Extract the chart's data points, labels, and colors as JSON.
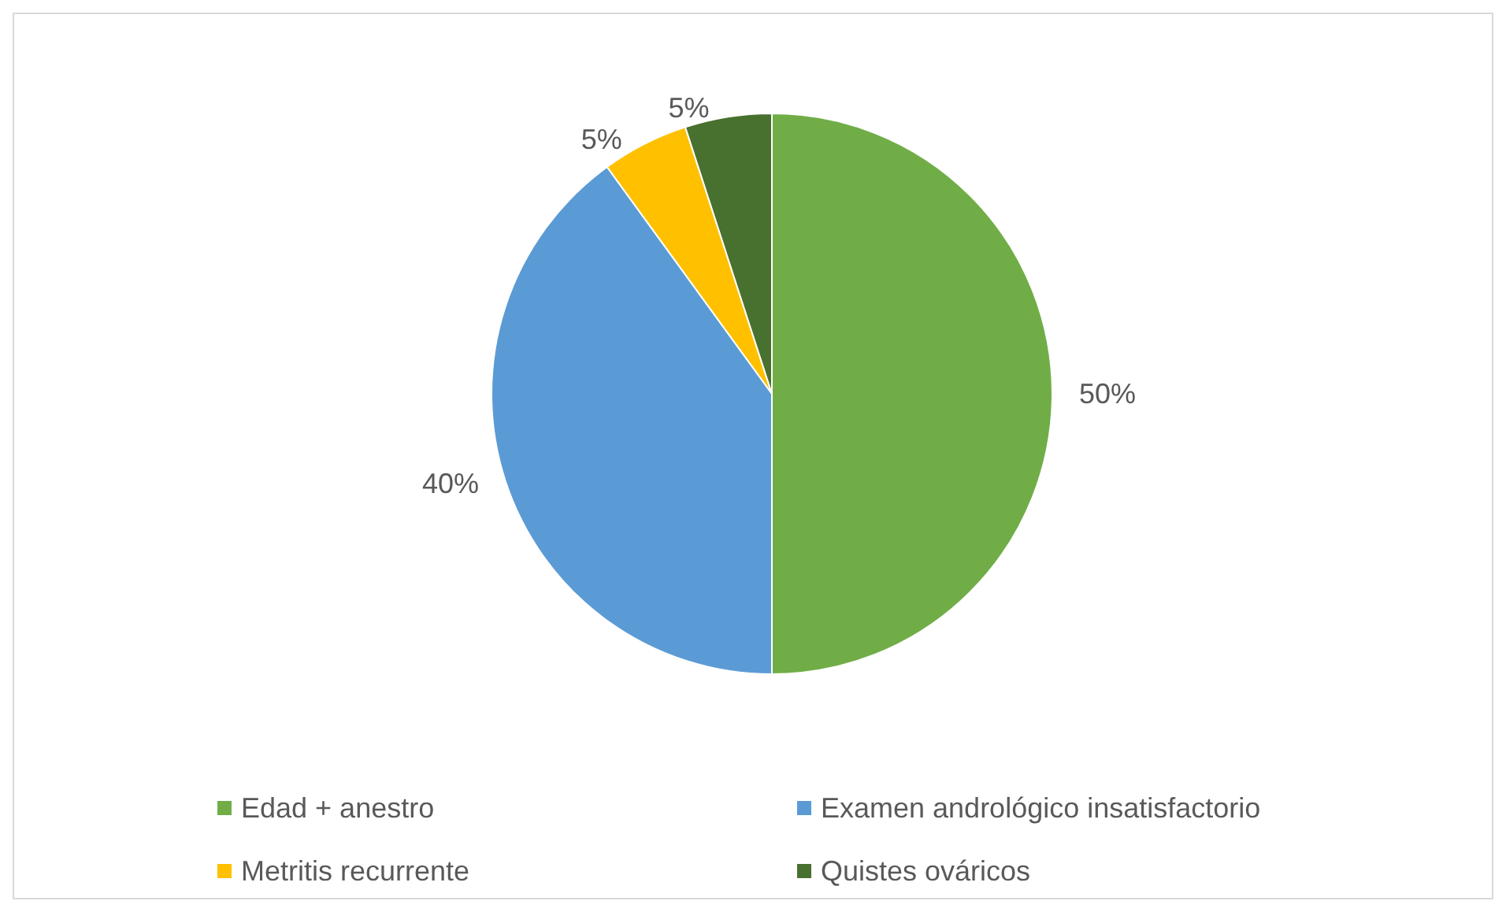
{
  "chart_data": {
    "type": "pie",
    "categories": [
      "Edad + anestro",
      "Examen andrológico insatisfactorio",
      "Metritis recurrente",
      "Quistes ováricos"
    ],
    "values": [
      50,
      40,
      5,
      5
    ],
    "colors": [
      "#70ad47",
      "#5b9bd5",
      "#ffc000",
      "#48702f"
    ],
    "value_labels": [
      "50%",
      "40%",
      "5%",
      "5%"
    ],
    "legend": "bottom"
  }
}
